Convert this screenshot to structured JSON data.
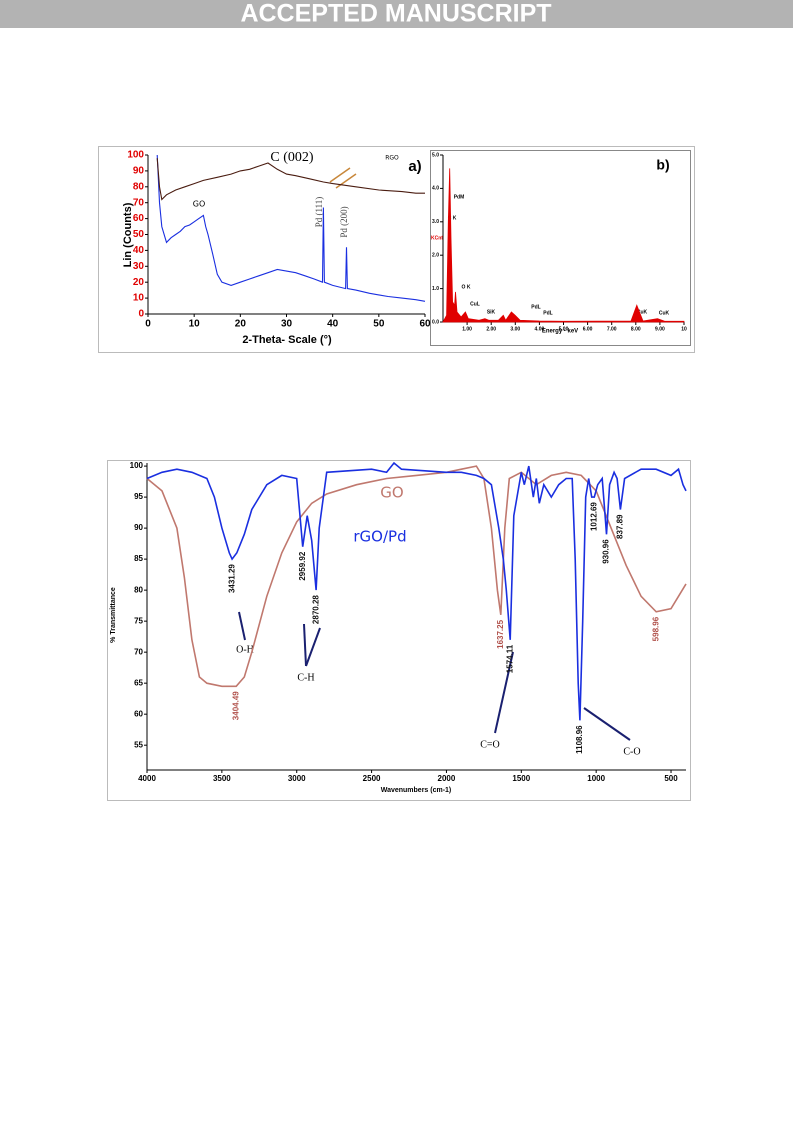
{
  "header": {
    "banner": "ACCEPTED MANUSCRIPT"
  },
  "chart_data": [
    {
      "type": "line",
      "panel_label": "a)",
      "ylabel": "Lin (Counts)",
      "xlabel": "2-Theta- Scale (°)",
      "annotations": [
        "C (002)",
        "Pd (111)",
        "Pd (200)"
      ],
      "xlim": [
        0,
        60
      ],
      "ylim": [
        0,
        100
      ],
      "xticks": [
        0,
        10,
        20,
        30,
        40,
        50,
        60
      ],
      "yticks": [
        0,
        10,
        20,
        30,
        40,
        50,
        60,
        70,
        80,
        90,
        100
      ],
      "series": [
        {
          "name": "GO",
          "color": "#1a2fe0",
          "x": [
            2,
            2.5,
            3,
            4,
            5,
            6,
            7,
            8,
            9,
            10,
            11,
            12,
            12.5,
            13,
            14,
            15,
            16,
            18,
            20,
            22,
            24,
            26,
            28,
            30,
            32,
            34,
            36,
            37.8,
            38,
            38.2,
            40,
            42.8,
            43,
            43.2,
            45,
            48,
            50,
            52,
            55,
            58,
            60
          ],
          "values": [
            100,
            70,
            55,
            45,
            48,
            50,
            52,
            55,
            56,
            58,
            60,
            62,
            55,
            50,
            38,
            25,
            20,
            18,
            20,
            22,
            24,
            26,
            28,
            27,
            26,
            24,
            22,
            20,
            67,
            20,
            18,
            16,
            42,
            16,
            15,
            13,
            12,
            11,
            10,
            9,
            8
          ]
        },
        {
          "name": "RGO",
          "color": "#4a1c10",
          "x": [
            2,
            2.5,
            3,
            4,
            6,
            8,
            10,
            12,
            15,
            18,
            20,
            22,
            24,
            26,
            28,
            30,
            32,
            35,
            38,
            40,
            45,
            50,
            55,
            58,
            60
          ],
          "values": [
            98,
            80,
            72,
            75,
            78,
            80,
            82,
            84,
            86,
            88,
            90,
            91,
            93,
            95,
            91,
            88,
            87,
            85,
            83,
            82,
            80,
            78,
            77,
            76,
            76
          ]
        }
      ]
    },
    {
      "type": "area",
      "panel_label": "b)",
      "ylabel": "KCnt",
      "xlabel": "Energy - keV",
      "annotations": [
        "PdM",
        "C K",
        "O K",
        "CuL",
        "SiK",
        "PdL",
        "PdL",
        "CuK",
        "CuK"
      ],
      "xlim": [
        0,
        10
      ],
      "ylim": [
        0,
        5
      ],
      "xticks": [
        {
          "value": 1,
          "label": "1.00"
        },
        {
          "value": 2,
          "label": "2.00"
        },
        {
          "value": 3,
          "label": "3.00"
        },
        {
          "value": 4,
          "label": "4.00"
        },
        {
          "value": 5,
          "label": "5.00"
        },
        {
          "value": 6,
          "label": "6.00"
        },
        {
          "value": 7,
          "label": "7.00"
        },
        {
          "value": 8,
          "label": "8.00"
        },
        {
          "value": 9,
          "label": "9.00"
        },
        10
      ],
      "yticks": [
        {
          "value": 0,
          "label": "0.0"
        },
        {
          "value": 1,
          "label": "1.0"
        },
        {
          "value": 2,
          "label": "2.0"
        },
        {
          "value": 3,
          "label": "3.0"
        },
        {
          "value": 4,
          "label": "4.0"
        },
        {
          "value": 5,
          "label": "5.0"
        }
      ],
      "series": [
        {
          "color": "#e00000",
          "x": [
            0,
            0.15,
            0.22,
            0.28,
            0.33,
            0.4,
            0.48,
            0.52,
            0.58,
            0.75,
            0.93,
            1.05,
            1.5,
            1.74,
            1.9,
            2.3,
            2.5,
            2.6,
            2.84,
            2.99,
            3.2,
            4,
            5,
            7.8,
            8.04,
            8.3,
            8.9,
            9.2,
            10
          ],
          "values": [
            0,
            0.2,
            3,
            4.6,
            2.5,
            0.6,
            0.5,
            0.9,
            0.3,
            0.15,
            0.3,
            0.1,
            0.05,
            0.1,
            0.05,
            0.05,
            0.2,
            0.05,
            0.3,
            0.2,
            0.05,
            0.03,
            0.02,
            0.03,
            0.5,
            0.03,
            0.1,
            0.02,
            0.02
          ]
        }
      ]
    },
    {
      "type": "line",
      "ylabel": "% Transmittance",
      "xlabel": "Wavenumbers (cm-1)",
      "annotations": [
        "O-H",
        "C-H",
        "C=O",
        "C-O"
      ],
      "xlim": [
        4000,
        400
      ],
      "ylim": [
        51,
        100.5
      ],
      "xticks": [
        4000,
        3500,
        3000,
        2500,
        2000,
        1500,
        1000,
        500
      ],
      "yticks": [
        55,
        60,
        65,
        70,
        75,
        80,
        85,
        90,
        95,
        100
      ],
      "series": [
        {
          "name": "GO",
          "color": "#c0786e",
          "x": [
            4000,
            3900,
            3800,
            3750,
            3700,
            3650,
            3600,
            3500,
            3404.49,
            3350,
            3300,
            3200,
            3100,
            3000,
            2900,
            2800,
            2600,
            2400,
            2200,
            2000,
            1900,
            1800,
            1750,
            1700,
            1660,
            1637.25,
            1610,
            1580,
            1500,
            1400,
            1300,
            1200,
            1100,
            1000,
            900,
            800,
            700,
            598.96,
            500,
            450,
            400
          ],
          "values": [
            98,
            96,
            90,
            82,
            72,
            66,
            65,
            64.5,
            64.5,
            66,
            70,
            79,
            86,
            91,
            94,
            95.5,
            97,
            98,
            98.5,
            99,
            99.5,
            100,
            98,
            90,
            80,
            76,
            90,
            98,
            99,
            97,
            98.5,
            99,
            98.5,
            96,
            90,
            84,
            79,
            76.5,
            77,
            79,
            81
          ],
          "peaks": [
            {
              "x": 3404.49,
              "y": 64.5
            },
            {
              "x": 1637.25,
              "y": 76
            },
            {
              "x": 598.96,
              "y": 76.5
            }
          ]
        },
        {
          "name": "rGO/Pd",
          "color": "#1a2fe0",
          "x": [
            4000,
            3900,
            3800,
            3700,
            3600,
            3550,
            3500,
            3450,
            3431.29,
            3400,
            3350,
            3300,
            3200,
            3100,
            3000,
            2959.92,
            2930,
            2900,
            2870.28,
            2850,
            2800,
            2500,
            2400,
            2350,
            2300,
            2000,
            1900,
            1800,
            1750,
            1700,
            1650,
            1620,
            1600,
            1574.11,
            1550,
            1500,
            1480,
            1450,
            1420,
            1400,
            1380,
            1350,
            1300,
            1250,
            1200,
            1160,
            1140,
            1120,
            1108.96,
            1090,
            1070,
            1050,
            1030,
            1012.69,
            990,
            960,
            940,
            930.96,
            910,
            880,
            860,
            837.89,
            810,
            700,
            600,
            500,
            450,
            420,
            400
          ],
          "values": [
            98,
            99,
            99.5,
            99,
            98,
            95,
            90,
            86,
            85,
            86,
            89,
            93,
            97,
            98.5,
            98,
            87,
            92,
            88,
            80,
            90,
            99,
            99.5,
            99,
            100.5,
            99.5,
            99,
            99,
            98.5,
            98,
            97,
            90,
            85,
            80,
            72,
            92,
            99,
            97,
            100,
            95,
            98,
            94,
            97,
            95,
            97,
            98,
            98,
            85,
            65,
            59,
            75,
            95,
            98,
            95,
            95,
            97,
            98,
            92,
            89,
            97,
            99,
            98,
            93,
            98,
            99.5,
            99.5,
            98.5,
            99.5,
            97,
            96
          ],
          "peaks": [
            {
              "x": 3431.29,
              "y": 85
            },
            {
              "x": 2959.92,
              "y": 87
            },
            {
              "x": 2870.28,
              "y": 80
            },
            {
              "x": 1574.11,
              "y": 72
            },
            {
              "x": 1108.96,
              "y": 59
            },
            {
              "x": 1012.69,
              "y": 95
            },
            {
              "x": 930.96,
              "y": 89
            },
            {
              "x": 837.89,
              "y": 93
            }
          ]
        }
      ]
    }
  ]
}
